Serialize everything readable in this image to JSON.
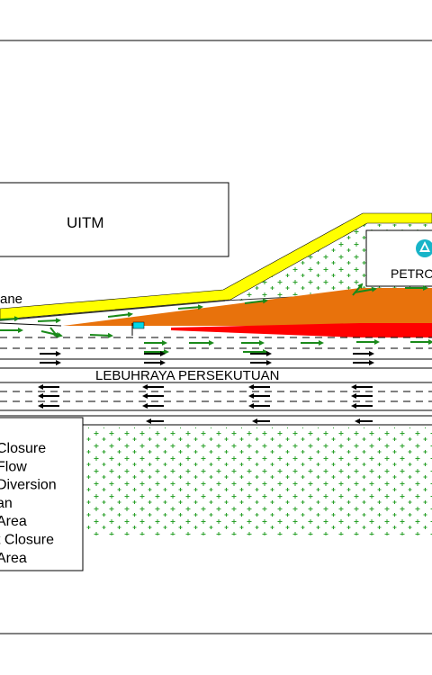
{
  "labels": {
    "building": "UITM",
    "lane_partial": "ane",
    "road_name": "LEBUHRAYA PERSEKUTUAN",
    "petrol_partial": "PETRO"
  },
  "legend": {
    "items": [
      "Closure",
      "Flow",
      "Diversion",
      "an",
      "Area",
      "t Closure",
      "Area"
    ]
  },
  "colors": {
    "embankment": "#ffff00",
    "closure_orange": "#e8720c",
    "closure_red": "#ff0000",
    "arrow_green": "#1a8a1a",
    "arrow_black": "#000000",
    "grass_cross": "#2aa02a",
    "cone": "#00d8e8",
    "petrol_logo": "#18b4c8"
  },
  "icons": [
    "green-flow-arrow",
    "black-flow-arrow",
    "traffic-cone-icon",
    "petrol-logo-icon"
  ]
}
